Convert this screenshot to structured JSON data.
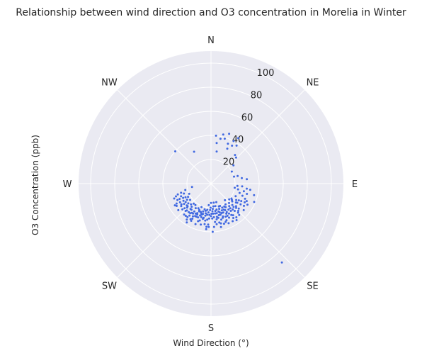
{
  "chart_data": {
    "type": "scatter",
    "projection": "polar",
    "title": "Relationship between wind direction and O3 concentration in Morelia in Winter",
    "xlabel": "Wind Direction (°)",
    "ylabel": "O3 Concentration (ppb)",
    "direction_labels": [
      "N",
      "NE",
      "E",
      "SE",
      "S",
      "SW",
      "W",
      "NW"
    ],
    "r_ticks": [
      20,
      40,
      60,
      80,
      100
    ],
    "rlim": [
      0,
      110
    ],
    "theta_zero": "north",
    "theta_direction": "clockwise",
    "grid": true,
    "marker_color": "#4169e1",
    "background_color": "#eaeaf2",
    "grid_color": "#ffffff",
    "points": [
      [
        332,
        30
      ],
      [
        312,
        40
      ],
      [
        6,
        40
      ],
      [
        8,
        34
      ],
      [
        10,
        27
      ],
      [
        12,
        38
      ],
      [
        14,
        42
      ],
      [
        17,
        39
      ],
      [
        20,
        44
      ],
      [
        23,
        36
      ],
      [
        25,
        32
      ],
      [
        29,
        36
      ],
      [
        31,
        44
      ],
      [
        28,
        40
      ],
      [
        34,
        38
      ],
      [
        40,
        31
      ],
      [
        44,
        30
      ],
      [
        51,
        24
      ],
      [
        60,
        20
      ],
      [
        73,
        20
      ],
      [
        74,
        23
      ],
      [
        80,
        26
      ],
      [
        83,
        30
      ],
      [
        95,
        22
      ],
      [
        95,
        26
      ],
      [
        98,
        30
      ],
      [
        99,
        33
      ],
      [
        105,
        37
      ],
      [
        113,
        39
      ],
      [
        116,
        33
      ],
      [
        138,
        88
      ],
      [
        260,
        16
      ],
      [
        245,
        20
      ],
      [
        240,
        22
      ],
      [
        242,
        24
      ],
      [
        236,
        24
      ],
      [
        239,
        30
      ],
      [
        233,
        28
      ],
      [
        222,
        30
      ],
      [
        213,
        29
      ],
      [
        215,
        34
      ],
      [
        214,
        36
      ],
      [
        208,
        33
      ],
      [
        204,
        30
      ],
      [
        200,
        25
      ],
      [
        196,
        24
      ],
      [
        186,
        18
      ],
      [
        180,
        16
      ],
      [
        172,
        16
      ],
      [
        164,
        16
      ],
      [
        161,
        20
      ],
      [
        158,
        24
      ],
      [
        154,
        24
      ],
      [
        148,
        23
      ],
      [
        145,
        21
      ],
      [
        140,
        18
      ],
      [
        137,
        22
      ],
      [
        128,
        22
      ],
      [
        123,
        25
      ],
      [
        117,
        23
      ],
      [
        121,
        27
      ],
      [
        126,
        27
      ],
      [
        132,
        28
      ],
      [
        139,
        30
      ],
      [
        145,
        32
      ],
      [
        152,
        32
      ],
      [
        156,
        36
      ],
      [
        161,
        30
      ],
      [
        166,
        34
      ],
      [
        168,
        33
      ],
      [
        174,
        32
      ],
      [
        176,
        36
      ],
      [
        178,
        40
      ],
      [
        183,
        36
      ],
      [
        186,
        36
      ],
      [
        189,
        34
      ],
      [
        192,
        29
      ],
      [
        197,
        32
      ],
      [
        201,
        36
      ],
      [
        208,
        35
      ],
      [
        212,
        38
      ],
      [
        225,
        28
      ],
      [
        229,
        25
      ],
      [
        232,
        22
      ],
      [
        247,
        27
      ],
      [
        250,
        31
      ],
      [
        244,
        29
      ],
      [
        240,
        33
      ],
      [
        223,
        31
      ],
      [
        218,
        34
      ],
      [
        217,
        27
      ],
      [
        211,
        27
      ],
      [
        206,
        30
      ],
      [
        203,
        25
      ],
      [
        196,
        29
      ],
      [
        190,
        27
      ],
      [
        188,
        22
      ],
      [
        182,
        22
      ],
      [
        179,
        25
      ],
      [
        176,
        21
      ],
      [
        172,
        25
      ],
      [
        168,
        22
      ],
      [
        165,
        24
      ],
      [
        163,
        27
      ],
      [
        160,
        29
      ],
      [
        157,
        26
      ],
      [
        151,
        27
      ],
      [
        150,
        22
      ],
      [
        142,
        26
      ],
      [
        144,
        28
      ],
      [
        135,
        25
      ],
      [
        130,
        23
      ],
      [
        127,
        26
      ],
      [
        132,
        31
      ],
      [
        137,
        33
      ],
      [
        143,
        35
      ],
      [
        147,
        34
      ],
      [
        153,
        28
      ],
      [
        159,
        34
      ],
      [
        168,
        29
      ],
      [
        171,
        30
      ],
      [
        175,
        28
      ],
      [
        178,
        29
      ],
      [
        183,
        29
      ],
      [
        186,
        30
      ],
      [
        193,
        30
      ],
      [
        199,
        28
      ],
      [
        205,
        27
      ],
      [
        209,
        31
      ],
      [
        215,
        30
      ],
      [
        220,
        25
      ],
      [
        227,
        30
      ],
      [
        231,
        35
      ],
      [
        237,
        34
      ],
      [
        248,
        33
      ],
      [
        253,
        26
      ],
      [
        228,
        32
      ],
      [
        184,
        34
      ],
      [
        170,
        28
      ],
      [
        164,
        31
      ],
      [
        156,
        30
      ],
      [
        149,
        29
      ],
      [
        146,
        26
      ],
      [
        141,
        24
      ],
      [
        134,
        29
      ],
      [
        125,
        30
      ],
      [
        119,
        32
      ],
      [
        124,
        33
      ],
      [
        129,
        35
      ],
      [
        136,
        27
      ],
      [
        152,
        25
      ],
      [
        158,
        20
      ],
      [
        169,
        19
      ],
      [
        174,
        19
      ],
      [
        181,
        20
      ],
      [
        187,
        26
      ],
      [
        194,
        22
      ],
      [
        198,
        26
      ],
      [
        202,
        21
      ],
      [
        207,
        23
      ],
      [
        212,
        24
      ],
      [
        216,
        22
      ],
      [
        221,
        22
      ],
      [
        226,
        27
      ],
      [
        234,
        26
      ],
      [
        238,
        27
      ],
      [
        243,
        26
      ],
      [
        250,
        24
      ],
      [
        256,
        22
      ],
      [
        138,
        35
      ],
      [
        145,
        37
      ],
      [
        150,
        36
      ],
      [
        162,
        35
      ],
      [
        167,
        37
      ],
      [
        172,
        34
      ],
      [
        186,
        38
      ],
      [
        194,
        35
      ],
      [
        199,
        33
      ],
      [
        210,
        34
      ],
      [
        157,
        33
      ],
      [
        163,
        25
      ],
      [
        177,
        23
      ],
      [
        191,
        23
      ],
      [
        204,
        24
      ],
      [
        219,
        27
      ],
      [
        224,
        24
      ],
      [
        235,
        30
      ],
      [
        131,
        20
      ],
      [
        126,
        21
      ],
      [
        120,
        29
      ],
      [
        114,
        31
      ],
      [
        108,
        25
      ],
      [
        103,
        28
      ],
      [
        111,
        28
      ],
      [
        106,
        31
      ],
      [
        100,
        20
      ],
      [
        102,
        23
      ],
      [
        120,
        35
      ],
      [
        135,
        32
      ],
      [
        140,
        28
      ],
      [
        153,
        30
      ],
      [
        160,
        26
      ],
      [
        166,
        27
      ],
      [
        171,
        23
      ],
      [
        180,
        27
      ],
      [
        185,
        24
      ],
      [
        189,
        31
      ],
      [
        195,
        26
      ],
      [
        201,
        30
      ],
      [
        207,
        28
      ],
      [
        214,
        32
      ],
      [
        221,
        34
      ],
      [
        228,
        27
      ],
      [
        233,
        31
      ],
      [
        239,
        35
      ],
      [
        244,
        31
      ],
      [
        252,
        29
      ],
      [
        147,
        31
      ],
      [
        155,
        22
      ],
      [
        162,
        22
      ],
      [
        169,
        25
      ],
      [
        176,
        25
      ],
      [
        183,
        26
      ],
      [
        190,
        25
      ],
      [
        197,
        27
      ],
      [
        204,
        28
      ],
      [
        211,
        29
      ],
      [
        218,
        30
      ]
    ]
  }
}
